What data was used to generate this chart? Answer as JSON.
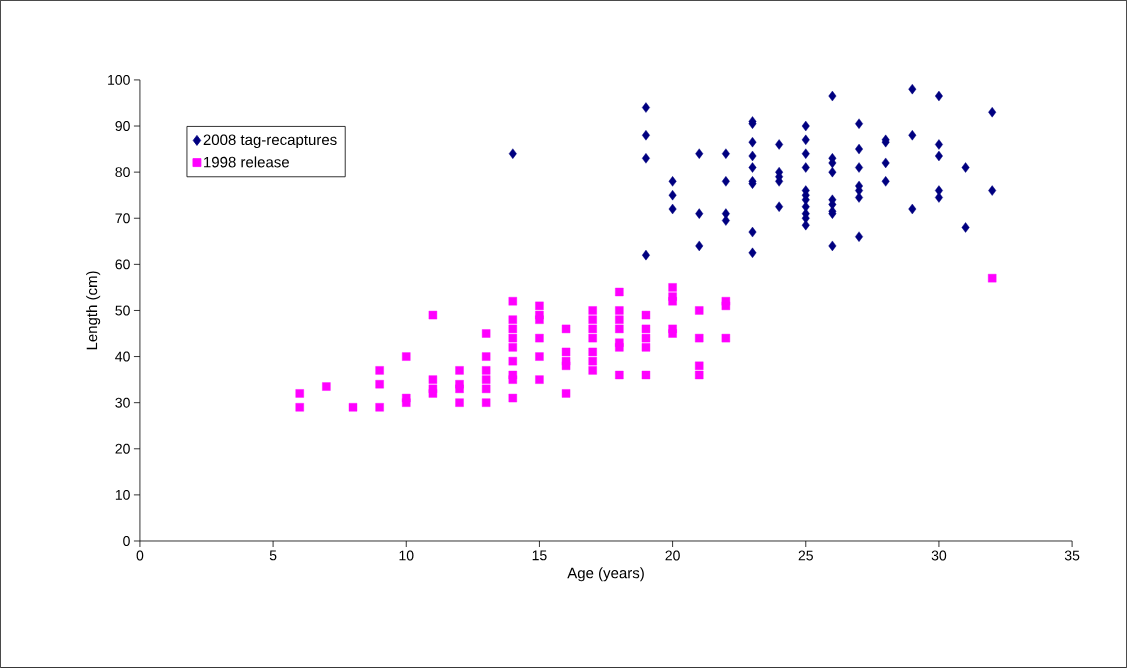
{
  "chart_data": {
    "type": "scatter",
    "xlabel": "Age (years)",
    "ylabel": "Length (cm)",
    "xlim": [
      0,
      35
    ],
    "xticks": [
      0,
      5,
      10,
      15,
      20,
      25,
      30,
      35
    ],
    "ylim": [
      0,
      100
    ],
    "yticks": [
      0,
      10,
      20,
      30,
      40,
      50,
      60,
      70,
      80,
      90,
      100
    ],
    "grid": false,
    "legend": "top left",
    "series": [
      {
        "name": "2008 tag-recaptures",
        "color": "#000080",
        "marker": "diamond",
        "x": [
          14,
          19,
          19,
          19,
          19,
          20,
          20,
          20,
          21,
          21,
          21,
          22,
          22,
          22,
          22,
          23,
          23,
          23,
          23,
          23,
          23,
          23,
          23,
          23,
          24,
          24,
          24,
          24,
          24,
          25,
          25,
          25,
          25,
          25,
          25,
          25,
          25,
          25,
          25,
          25,
          26,
          26,
          26,
          26,
          26,
          26,
          26,
          26,
          26,
          27,
          27,
          27,
          27,
          27,
          27,
          27,
          28,
          28,
          28,
          28,
          29,
          29,
          29,
          30,
          30,
          30,
          30,
          30,
          31,
          31,
          32,
          32
        ],
        "values": [
          84,
          94,
          88,
          83,
          62,
          78,
          75,
          72,
          84,
          71,
          64,
          84,
          78,
          71,
          69.5,
          91,
          90.5,
          86.5,
          83.5,
          81,
          78,
          77.5,
          67,
          62.5,
          86,
          80,
          79,
          78,
          72.5,
          90,
          87,
          84,
          81,
          76,
          75,
          74,
          72.5,
          71,
          70,
          68.5,
          96.5,
          83,
          82,
          80,
          74,
          73,
          71.5,
          71,
          64,
          90.5,
          85,
          81,
          77,
          76,
          74.5,
          66,
          87,
          86.5,
          82,
          78,
          98,
          88,
          72,
          96.5,
          86,
          83.5,
          76,
          74.5,
          81,
          68,
          93,
          76
        ]
      },
      {
        "name": "1998 release",
        "color": "#ff00ff",
        "marker": "square",
        "x": [
          6,
          6,
          7,
          8,
          9,
          9,
          9,
          10,
          10,
          10,
          11,
          11,
          11,
          11,
          12,
          12,
          12,
          12,
          13,
          13,
          13,
          13,
          13,
          13,
          14,
          14,
          14,
          14,
          14,
          14,
          14,
          14,
          14,
          15,
          15,
          15,
          15,
          15,
          15,
          16,
          16,
          16,
          16,
          16,
          17,
          17,
          17,
          17,
          17,
          17,
          17,
          18,
          18,
          18,
          18,
          18,
          18,
          18,
          19,
          19,
          19,
          19,
          19,
          20,
          20,
          20,
          20,
          20,
          21,
          21,
          21,
          21,
          22,
          22,
          22,
          32
        ],
        "values": [
          32,
          29,
          33.5,
          29,
          37,
          34,
          29,
          40,
          31,
          30,
          49,
          35,
          33,
          32,
          37,
          34,
          33,
          30,
          45,
          40,
          37,
          35,
          33,
          30,
          52,
          48,
          46,
          44,
          42,
          39,
          36,
          35,
          31,
          51,
          49,
          48,
          44,
          40,
          35,
          46,
          41,
          39,
          38,
          32,
          50,
          48,
          46,
          44,
          41,
          39,
          37,
          54,
          50,
          48,
          46,
          43,
          42,
          36,
          49,
          46,
          44,
          42,
          36,
          55,
          53,
          52,
          46,
          45,
          50,
          44,
          38,
          36,
          52,
          51,
          44,
          57
        ]
      }
    ]
  }
}
